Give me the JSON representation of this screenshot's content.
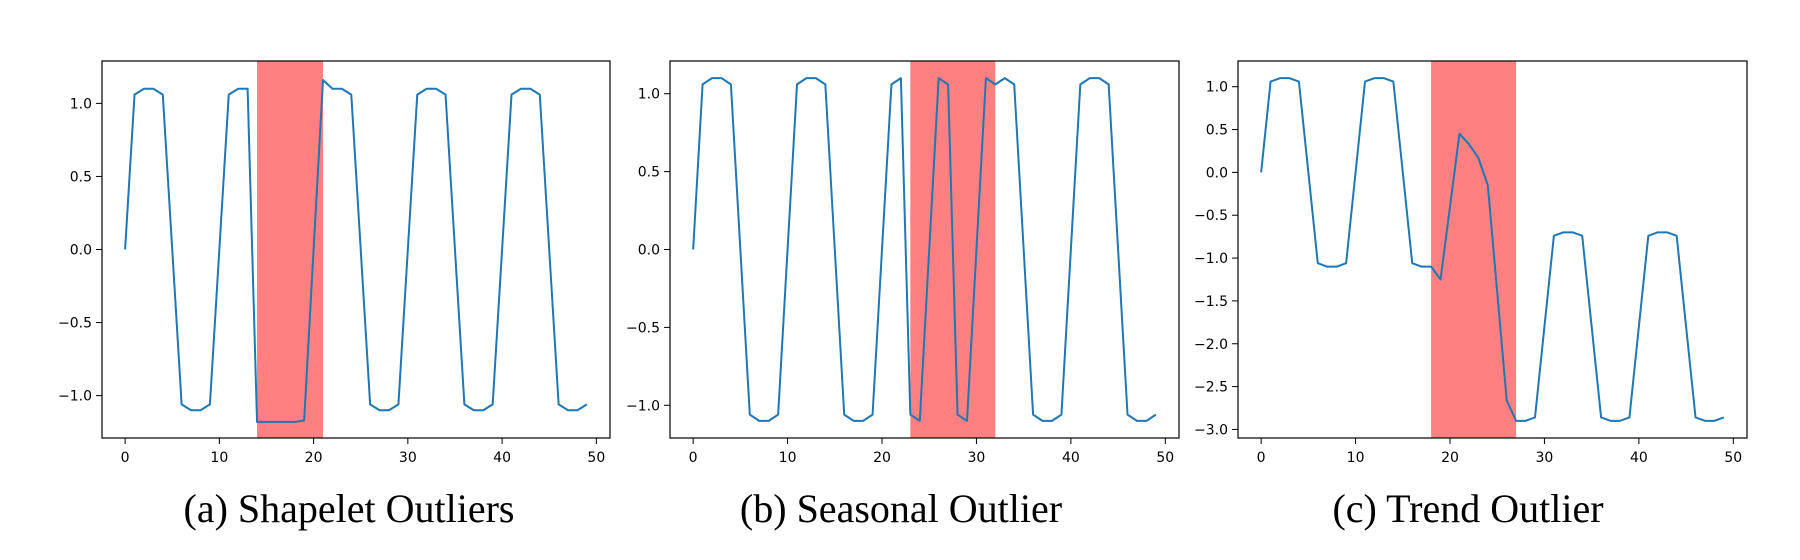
{
  "colors": {
    "line": "#1f77b4",
    "highlight": "#ff8080",
    "axis": "#000000",
    "background": "#ffffff"
  },
  "chart_data": [
    {
      "type": "line",
      "caption": "(a) Shapelet Outliers",
      "xlim": [
        -2.45,
        51.45
      ],
      "ylim": [
        -1.29,
        1.29
      ],
      "xticks": [
        0,
        10,
        20,
        30,
        40,
        50
      ],
      "yticks": [
        -1.0,
        -0.5,
        0.0,
        0.5,
        1.0
      ],
      "ytick_labels": [
        "−1.0",
        "−0.5",
        "0.0",
        "0.5",
        "1.0"
      ],
      "highlight_span": [
        14,
        21
      ],
      "x": [
        0,
        1,
        2,
        3,
        4,
        5,
        6,
        7,
        8,
        9,
        10,
        11,
        12,
        13,
        14,
        15,
        16,
        17,
        18,
        19,
        20,
        21,
        22,
        23,
        24,
        25,
        26,
        27,
        28,
        29,
        30,
        31,
        32,
        33,
        34,
        35,
        36,
        37,
        38,
        39,
        40,
        41,
        42,
        43,
        44,
        45,
        46,
        47,
        48,
        49
      ],
      "y": [
        0.0,
        1.06,
        1.1,
        1.1,
        1.06,
        0.0,
        -1.06,
        -1.1,
        -1.1,
        -1.06,
        0.0,
        1.06,
        1.1,
        1.1,
        -1.18,
        -1.18,
        -1.18,
        -1.18,
        -1.18,
        -1.17,
        0.0,
        1.16,
        1.1,
        1.1,
        1.06,
        0.0,
        -1.06,
        -1.1,
        -1.1,
        -1.06,
        0.0,
        1.06,
        1.1,
        1.1,
        1.06,
        0.0,
        -1.06,
        -1.1,
        -1.1,
        -1.06,
        0.0,
        1.06,
        1.1,
        1.1,
        1.06,
        0.0,
        -1.06,
        -1.1,
        -1.1,
        -1.06
      ]
    },
    {
      "type": "line",
      "caption": "(b) Seasonal Outlier",
      "xlim": [
        -2.45,
        51.45
      ],
      "ylim": [
        -1.21,
        1.21
      ],
      "xticks": [
        0,
        10,
        20,
        30,
        40,
        50
      ],
      "yticks": [
        -1.0,
        -0.5,
        0.0,
        0.5,
        1.0
      ],
      "ytick_labels": [
        "−1.0",
        "−0.5",
        "0.0",
        "0.5",
        "1.0"
      ],
      "highlight_span": [
        23,
        32
      ],
      "x": [
        0,
        1,
        2,
        3,
        4,
        5,
        6,
        7,
        8,
        9,
        10,
        11,
        12,
        13,
        14,
        15,
        16,
        17,
        18,
        19,
        20,
        21,
        22,
        23,
        24,
        25,
        26,
        27,
        28,
        29,
        30,
        31,
        32,
        33,
        34,
        35,
        36,
        37,
        38,
        39,
        40,
        41,
        42,
        43,
        44,
        45,
        46,
        47,
        48,
        49
      ],
      "y": [
        0.0,
        1.06,
        1.1,
        1.1,
        1.06,
        0.0,
        -1.06,
        -1.1,
        -1.1,
        -1.06,
        0.0,
        1.06,
        1.1,
        1.1,
        1.06,
        0.0,
        -1.06,
        -1.1,
        -1.1,
        -1.06,
        0.0,
        1.06,
        1.1,
        -1.06,
        -1.1,
        0.0,
        1.1,
        1.06,
        -1.06,
        -1.1,
        0.0,
        1.1,
        1.06,
        1.1,
        1.06,
        0.0,
        -1.06,
        -1.1,
        -1.1,
        -1.06,
        0.0,
        1.06,
        1.1,
        1.1,
        1.06,
        0.0,
        -1.06,
        -1.1,
        -1.1,
        -1.06
      ]
    },
    {
      "type": "line",
      "caption": "(c) Trend Outlier",
      "xlim": [
        -2.45,
        51.45
      ],
      "ylim": [
        -3.1,
        1.3
      ],
      "xticks": [
        0,
        10,
        20,
        30,
        40,
        50
      ],
      "yticks": [
        -3.0,
        -2.5,
        -2.0,
        -1.5,
        -1.0,
        -0.5,
        0.0,
        0.5,
        1.0
      ],
      "ytick_labels": [
        "−3.0",
        "−2.5",
        "−2.0",
        "−1.5",
        "−1.0",
        "−0.5",
        "0.0",
        "0.5",
        "1.0"
      ],
      "highlight_span": [
        18,
        27
      ],
      "x": [
        0,
        1,
        2,
        3,
        4,
        5,
        6,
        7,
        8,
        9,
        10,
        11,
        12,
        13,
        14,
        15,
        16,
        17,
        18,
        19,
        20,
        21,
        22,
        23,
        24,
        25,
        26,
        27,
        28,
        29,
        30,
        31,
        32,
        33,
        34,
        35,
        36,
        37,
        38,
        39,
        40,
        41,
        42,
        43,
        44,
        45,
        46,
        47,
        48,
        49
      ],
      "y": [
        0.0,
        1.06,
        1.1,
        1.1,
        1.06,
        0.0,
        -1.06,
        -1.1,
        -1.1,
        -1.06,
        0.0,
        1.06,
        1.1,
        1.1,
        1.06,
        0.0,
        -1.06,
        -1.1,
        -1.1,
        -1.25,
        -0.4,
        0.45,
        0.33,
        0.17,
        -0.15,
        -1.4,
        -2.66,
        -2.9,
        -2.9,
        -2.86,
        -1.8,
        -0.74,
        -0.7,
        -0.7,
        -0.74,
        -1.8,
        -2.86,
        -2.9,
        -2.9,
        -2.86,
        -1.8,
        -0.74,
        -0.7,
        -0.7,
        -0.74,
        -1.8,
        -2.86,
        -2.9,
        -2.9,
        -2.86
      ]
    }
  ]
}
